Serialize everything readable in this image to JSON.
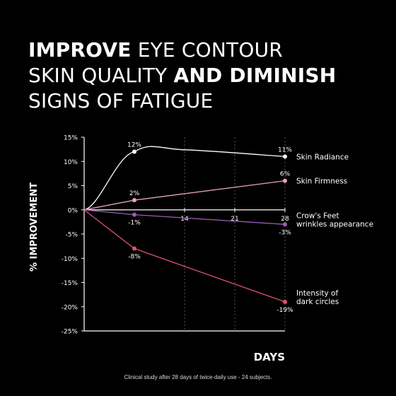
{
  "headline": {
    "line1": {
      "bold": "IMPROVE",
      "regular": " EYE CONTOUR"
    },
    "line2": {
      "regular": "SKIN QUALITY ",
      "bold": "AND DIMINISH"
    },
    "line3": {
      "regular": "SIGNS OF FATIGUE"
    }
  },
  "colors": {
    "background": "#000000",
    "radiance": "#ffffff",
    "firmness": "#e8a4b4",
    "crows_feet": "#9d5ab4",
    "dark_circles": "#e0506e",
    "axis": "#ffffff"
  },
  "chart_data": {
    "type": "line",
    "ylabel": "% IMPROVEMENT",
    "xlabel": "DAYS",
    "xlim": [
      0,
      28
    ],
    "ylim": [
      -25,
      15
    ],
    "x_ticks": [
      {
        "value": 14,
        "label": "14"
      },
      {
        "value": 21,
        "label": "21"
      },
      {
        "value": 28,
        "label": "28"
      }
    ],
    "y_ticks": [
      {
        "value": 15,
        "label": "15%"
      },
      {
        "value": 10,
        "label": "10%"
      },
      {
        "value": 5,
        "label": "5%"
      },
      {
        "value": 0,
        "label": "0%"
      },
      {
        "value": -5,
        "label": "-5%"
      },
      {
        "value": -10,
        "label": "-10%"
      },
      {
        "value": -15,
        "label": "-15%"
      },
      {
        "value": -20,
        "label": "-20%"
      },
      {
        "value": -25,
        "label": "-25%"
      }
    ],
    "grid": "dashed vertical lines",
    "series": [
      {
        "key": "radiance",
        "name_lines": [
          "Skin Radiance"
        ],
        "color": "#ffffff",
        "smooth": true,
        "points": [
          {
            "x": 0,
            "y": 0,
            "label": ""
          },
          {
            "x": 7,
            "y": 12,
            "label": "12%"
          },
          {
            "x": 14,
            "y": 12.4,
            "label": ""
          },
          {
            "x": 28,
            "y": 11,
            "label": "11%"
          }
        ]
      },
      {
        "key": "firmness",
        "name_lines": [
          "Skin Firmness"
        ],
        "color": "#e8a4b4",
        "smooth": false,
        "points": [
          {
            "x": 0,
            "y": 0,
            "label": ""
          },
          {
            "x": 7,
            "y": 2,
            "label": "2%"
          },
          {
            "x": 28,
            "y": 6,
            "label": "6%"
          }
        ]
      },
      {
        "key": "crows_feet",
        "name_lines": [
          "Crow's Feet",
          "wrinkles appearance"
        ],
        "color": "#9d5ab4",
        "smooth": false,
        "points": [
          {
            "x": 0,
            "y": 0,
            "label": ""
          },
          {
            "x": 7,
            "y": -1,
            "label": "-1%"
          },
          {
            "x": 28,
            "y": -3,
            "label": "-3%"
          }
        ]
      },
      {
        "key": "dark_circles",
        "name_lines": [
          "Intensity of",
          "dark circles"
        ],
        "color": "#e0506e",
        "smooth": false,
        "points": [
          {
            "x": 0,
            "y": 0,
            "label": ""
          },
          {
            "x": 7,
            "y": -8,
            "label": "-8%"
          },
          {
            "x": 28,
            "y": -19,
            "label": "-19%"
          }
        ]
      }
    ]
  },
  "footnote": "Clinical study after 28 days of twice-daily use - 24 subjects."
}
